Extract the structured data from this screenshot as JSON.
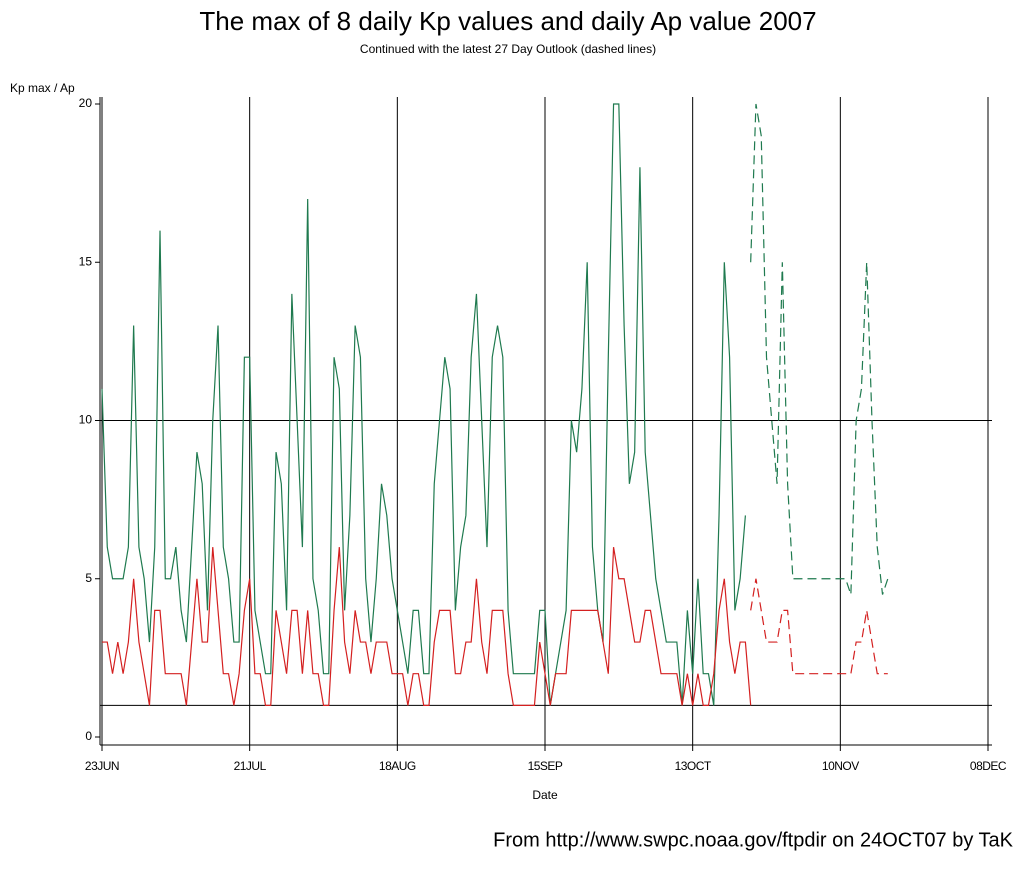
{
  "chart_data": {
    "type": "line",
    "title": "The max of 8 daily Kp values and daily Ap value 2007",
    "subtitle": "Continued with the latest 27 Day Outlook (dashed lines)",
    "ylabel": "Kp max / Ap",
    "xlabel": "Date",
    "footer": "From http://www.swpc.noaa.gov/ftpdir on 24OCT07 by TaK",
    "xlim": [
      "2007-06-23",
      "2007-12-08"
    ],
    "xticks": [
      {
        "value": "2007-06-23",
        "label": "23JUN"
      },
      {
        "value": "2007-07-21",
        "label": "21JUL"
      },
      {
        "value": "2007-08-18",
        "label": "18AUG"
      },
      {
        "value": "2007-09-15",
        "label": "15SEP"
      },
      {
        "value": "2007-10-13",
        "label": "13OCT"
      },
      {
        "value": "2007-11-10",
        "label": "10NOV"
      },
      {
        "value": "2007-12-08",
        "label": "08DEC"
      }
    ],
    "ylim": [
      0,
      20
    ],
    "yticks": [
      0,
      5,
      10,
      15,
      20
    ],
    "hlines": [
      1,
      10
    ],
    "grid": true,
    "series": [
      {
        "color": "#1f7a4f",
        "dashed": false,
        "x": [
          "2007-06-23",
          "2007-06-24",
          "2007-06-25",
          "2007-06-26",
          "2007-06-27",
          "2007-06-28",
          "2007-06-29",
          "2007-06-30",
          "2007-07-01",
          "2007-07-02",
          "2007-07-03",
          "2007-07-04",
          "2007-07-05",
          "2007-07-06",
          "2007-07-07",
          "2007-07-08",
          "2007-07-09",
          "2007-07-10",
          "2007-07-11",
          "2007-07-12",
          "2007-07-13",
          "2007-07-14",
          "2007-07-15",
          "2007-07-16",
          "2007-07-17",
          "2007-07-18",
          "2007-07-19",
          "2007-07-20",
          "2007-07-21",
          "2007-07-22",
          "2007-07-23",
          "2007-07-24",
          "2007-07-25",
          "2007-07-26",
          "2007-07-27",
          "2007-07-28",
          "2007-07-29",
          "2007-07-30",
          "2007-07-31",
          "2007-08-01",
          "2007-08-02",
          "2007-08-03",
          "2007-08-04",
          "2007-08-05",
          "2007-08-06",
          "2007-08-07",
          "2007-08-08",
          "2007-08-09",
          "2007-08-10",
          "2007-08-11",
          "2007-08-12",
          "2007-08-13",
          "2007-08-14",
          "2007-08-15",
          "2007-08-16",
          "2007-08-17",
          "2007-08-18",
          "2007-08-19",
          "2007-08-20",
          "2007-08-21",
          "2007-08-22",
          "2007-08-23",
          "2007-08-24",
          "2007-08-25",
          "2007-08-26",
          "2007-08-27",
          "2007-08-28",
          "2007-08-29",
          "2007-08-30",
          "2007-08-31",
          "2007-09-01",
          "2007-09-02",
          "2007-09-03",
          "2007-09-04",
          "2007-09-05",
          "2007-09-06",
          "2007-09-07",
          "2007-09-08",
          "2007-09-09",
          "2007-09-10",
          "2007-09-11",
          "2007-09-12",
          "2007-09-13",
          "2007-09-14",
          "2007-09-15",
          "2007-09-16",
          "2007-09-17",
          "2007-09-18",
          "2007-09-19",
          "2007-09-20",
          "2007-09-21",
          "2007-09-22",
          "2007-09-23",
          "2007-09-24",
          "2007-09-25",
          "2007-09-26",
          "2007-09-27",
          "2007-09-28",
          "2007-09-29",
          "2007-09-30",
          "2007-10-01",
          "2007-10-02",
          "2007-10-03",
          "2007-10-04",
          "2007-10-05",
          "2007-10-06",
          "2007-10-07",
          "2007-10-08",
          "2007-10-09",
          "2007-10-10",
          "2007-10-11",
          "2007-10-12",
          "2007-10-13",
          "2007-10-14",
          "2007-10-15",
          "2007-10-16",
          "2007-10-17",
          "2007-10-18",
          "2007-10-19",
          "2007-10-20",
          "2007-10-21",
          "2007-10-22",
          "2007-10-23",
          "2007-10-24"
        ],
        "values": [
          11,
          6,
          5,
          5,
          5,
          6,
          13,
          6,
          5,
          3,
          6,
          16,
          5,
          5,
          6,
          4,
          3,
          6,
          9,
          8,
          4,
          10,
          13,
          6,
          5,
          3,
          3,
          12,
          12,
          4,
          3,
          2,
          2,
          9,
          8,
          4,
          14,
          10,
          6,
          17,
          5,
          4,
          2,
          2,
          12,
          11,
          4,
          7,
          13,
          12,
          5,
          3,
          5,
          8,
          7,
          5,
          4,
          3,
          2,
          4,
          4,
          2,
          2,
          8,
          10,
          12,
          11,
          4,
          6,
          7,
          12,
          14,
          10,
          6,
          12,
          13,
          12,
          4,
          2,
          2,
          2,
          2,
          2,
          4,
          4,
          1,
          2,
          3,
          4,
          10,
          9,
          11,
          15,
          6,
          4,
          3,
          12,
          20,
          20,
          13,
          8,
          9,
          18,
          9,
          7,
          5,
          4,
          3,
          3,
          3,
          1,
          4,
          2,
          5,
          2,
          2,
          1,
          7,
          15,
          12,
          4,
          5,
          7,
          null
        ]
      },
      {
        "color": "#d42020",
        "dashed": false,
        "x": [
          "2007-06-23",
          "2007-06-24",
          "2007-06-25",
          "2007-06-26",
          "2007-06-27",
          "2007-06-28",
          "2007-06-29",
          "2007-06-30",
          "2007-07-01",
          "2007-07-02",
          "2007-07-03",
          "2007-07-04",
          "2007-07-05",
          "2007-07-06",
          "2007-07-07",
          "2007-07-08",
          "2007-07-09",
          "2007-07-10",
          "2007-07-11",
          "2007-07-12",
          "2007-07-13",
          "2007-07-14",
          "2007-07-15",
          "2007-07-16",
          "2007-07-17",
          "2007-07-18",
          "2007-07-19",
          "2007-07-20",
          "2007-07-21",
          "2007-07-22",
          "2007-07-23",
          "2007-07-24",
          "2007-07-25",
          "2007-07-26",
          "2007-07-27",
          "2007-07-28",
          "2007-07-29",
          "2007-07-30",
          "2007-07-31",
          "2007-08-01",
          "2007-08-02",
          "2007-08-03",
          "2007-08-04",
          "2007-08-05",
          "2007-08-06",
          "2007-08-07",
          "2007-08-08",
          "2007-08-09",
          "2007-08-10",
          "2007-08-11",
          "2007-08-12",
          "2007-08-13",
          "2007-08-14",
          "2007-08-15",
          "2007-08-16",
          "2007-08-17",
          "2007-08-18",
          "2007-08-19",
          "2007-08-20",
          "2007-08-21",
          "2007-08-22",
          "2007-08-23",
          "2007-08-24",
          "2007-08-25",
          "2007-08-26",
          "2007-08-27",
          "2007-08-28",
          "2007-08-29",
          "2007-08-30",
          "2007-08-31",
          "2007-09-01",
          "2007-09-02",
          "2007-09-03",
          "2007-09-04",
          "2007-09-05",
          "2007-09-06",
          "2007-09-07",
          "2007-09-08",
          "2007-09-09",
          "2007-09-10",
          "2007-09-11",
          "2007-09-12",
          "2007-09-13",
          "2007-09-14",
          "2007-09-15",
          "2007-09-16",
          "2007-09-17",
          "2007-09-18",
          "2007-09-19",
          "2007-09-20",
          "2007-09-21",
          "2007-09-22",
          "2007-09-23",
          "2007-09-24",
          "2007-09-25",
          "2007-09-26",
          "2007-09-27",
          "2007-09-28",
          "2007-09-29",
          "2007-09-30",
          "2007-10-01",
          "2007-10-02",
          "2007-10-03",
          "2007-10-04",
          "2007-10-05",
          "2007-10-06",
          "2007-10-07",
          "2007-10-08",
          "2007-10-09",
          "2007-10-10",
          "2007-10-11",
          "2007-10-12",
          "2007-10-13",
          "2007-10-14",
          "2007-10-15",
          "2007-10-16",
          "2007-10-17",
          "2007-10-18",
          "2007-10-19",
          "2007-10-20",
          "2007-10-21",
          "2007-10-22",
          "2007-10-23",
          "2007-10-24"
        ],
        "values": [
          3,
          3,
          2,
          3,
          2,
          3,
          5,
          3,
          2,
          1,
          4,
          4,
          2,
          2,
          2,
          2,
          1,
          3,
          5,
          3,
          3,
          6,
          4,
          2,
          2,
          1,
          2,
          4,
          5,
          2,
          2,
          1,
          1,
          4,
          3,
          2,
          4,
          4,
          2,
          4,
          2,
          2,
          1,
          1,
          4,
          6,
          3,
          2,
          4,
          3,
          3,
          2,
          3,
          3,
          3,
          2,
          2,
          2,
          1,
          2,
          2,
          1,
          1,
          3,
          4,
          4,
          4,
          2,
          2,
          3,
          3,
          5,
          3,
          2,
          4,
          4,
          4,
          2,
          1,
          1,
          1,
          1,
          1,
          3,
          2,
          1,
          2,
          2,
          2,
          4,
          4,
          4,
          4,
          4,
          4,
          3,
          2,
          6,
          5,
          5,
          4,
          3,
          3,
          4,
          4,
          3,
          2,
          2,
          2,
          2,
          1,
          2,
          1,
          2,
          1,
          1,
          2,
          4,
          5,
          3,
          2,
          3,
          3,
          1
        ]
      },
      {
        "color": "#1f7a4f",
        "dashed": true,
        "x": [
          "2007-10-24",
          "2007-10-25",
          "2007-10-26",
          "2007-10-27",
          "2007-10-28",
          "2007-10-29",
          "2007-10-30",
          "2007-10-31",
          "2007-11-01",
          "2007-11-02",
          "2007-11-03",
          "2007-11-04",
          "2007-11-05",
          "2007-11-06",
          "2007-11-07",
          "2007-11-08",
          "2007-11-09",
          "2007-11-10",
          "2007-11-11",
          "2007-11-12",
          "2007-11-13",
          "2007-11-14",
          "2007-11-15",
          "2007-11-16",
          "2007-11-17",
          "2007-11-18",
          "2007-11-19"
        ],
        "values": [
          15,
          20,
          19,
          12,
          10,
          8,
          15,
          8,
          5,
          5,
          5,
          5,
          5,
          5,
          5,
          5,
          5,
          5,
          5,
          4.5,
          10,
          11,
          15,
          10,
          6,
          4.5,
          5
        ]
      },
      {
        "color": "#d42020",
        "dashed": true,
        "x": [
          "2007-10-24",
          "2007-10-25",
          "2007-10-26",
          "2007-10-27",
          "2007-10-28",
          "2007-10-29",
          "2007-10-30",
          "2007-10-31",
          "2007-11-01",
          "2007-11-02",
          "2007-11-03",
          "2007-11-04",
          "2007-11-05",
          "2007-11-06",
          "2007-11-07",
          "2007-11-08",
          "2007-11-09",
          "2007-11-10",
          "2007-11-11",
          "2007-11-12",
          "2007-11-13",
          "2007-11-14",
          "2007-11-15",
          "2007-11-16",
          "2007-11-17",
          "2007-11-18",
          "2007-11-19"
        ],
        "values": [
          4,
          5,
          4,
          3,
          3,
          3,
          4,
          4,
          2,
          2,
          2,
          2,
          2,
          2,
          2,
          2,
          2,
          2,
          2,
          2,
          3,
          3,
          4,
          3,
          2,
          2,
          2
        ]
      }
    ]
  }
}
